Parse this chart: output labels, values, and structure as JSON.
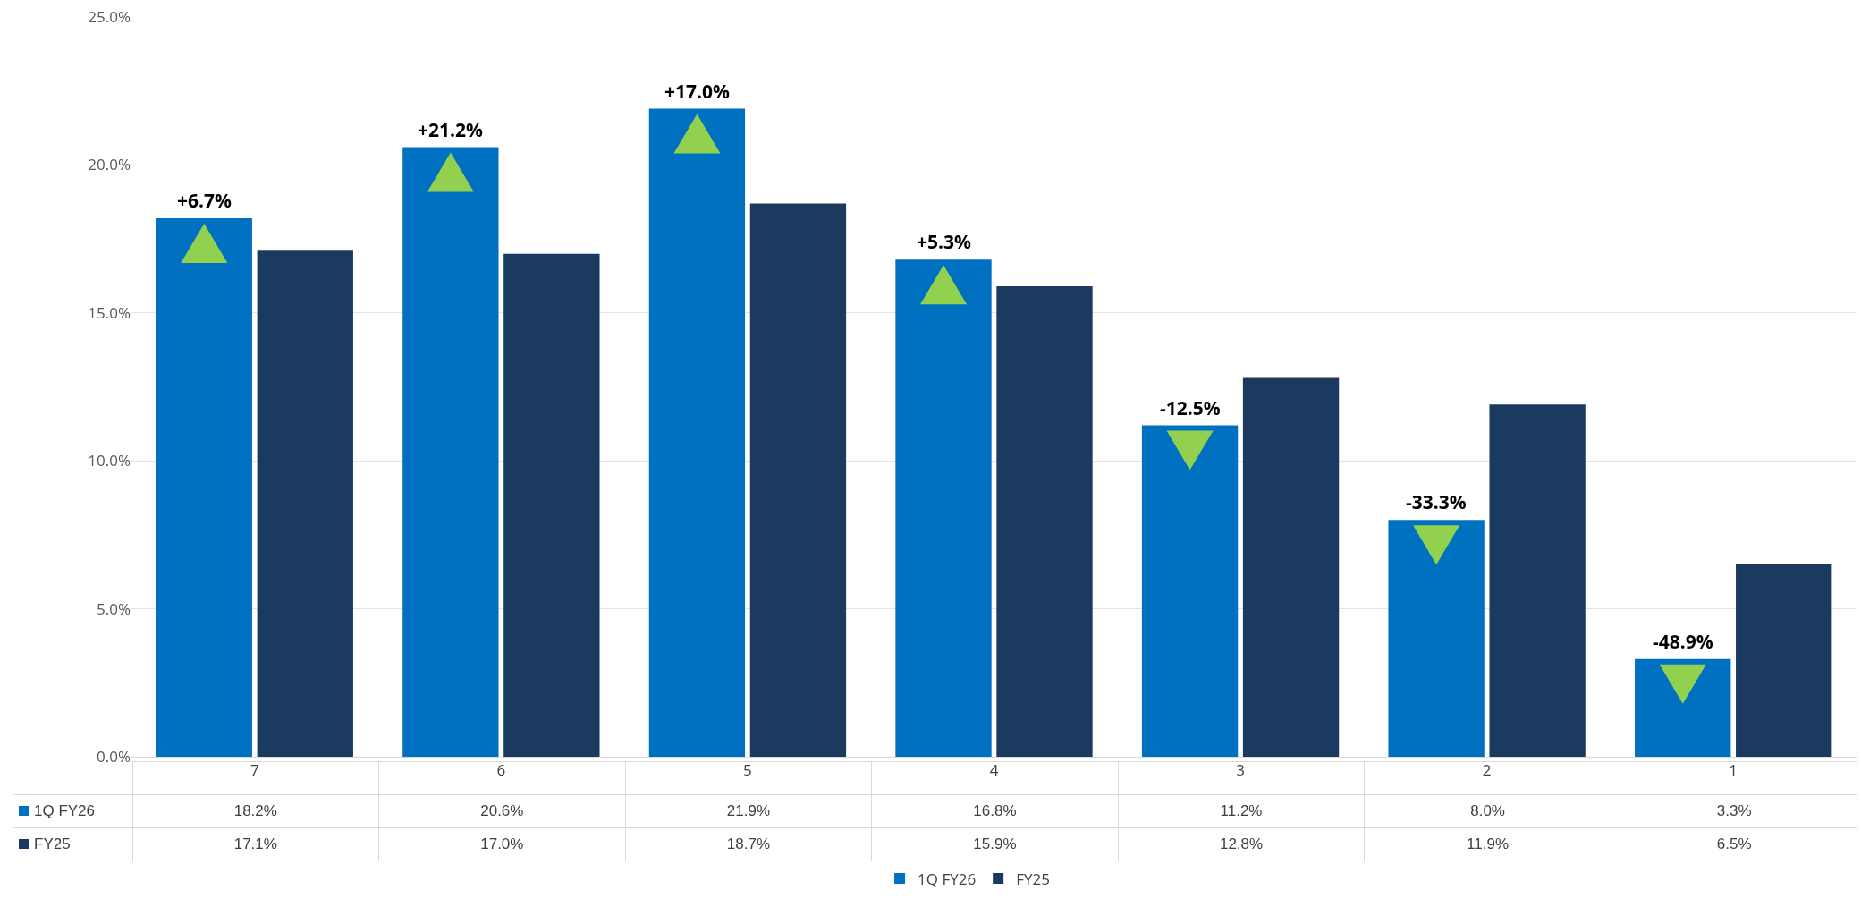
{
  "chart_data": {
    "type": "bar",
    "categories": [
      "7",
      "6",
      "5",
      "4",
      "3",
      "2",
      "1"
    ],
    "series": [
      {
        "name": "1Q FY26",
        "color": "#0070c0",
        "values": [
          18.2,
          20.6,
          21.9,
          16.8,
          11.2,
          8.0,
          3.3
        ],
        "value_labels": [
          "18.2%",
          "20.6%",
          "21.9%",
          "16.8%",
          "11.2%",
          "8.0%",
          "3.3%"
        ]
      },
      {
        "name": "FY25",
        "color": "#1a3b5f",
        "values": [
          17.1,
          17.0,
          18.7,
          15.9,
          12.8,
          11.9,
          6.5
        ],
        "value_labels": [
          "17.1%",
          "17.0%",
          "18.7%",
          "15.9%",
          "12.8%",
          "11.9%",
          "6.5%"
        ]
      }
    ],
    "ylim": [
      0,
      25
    ],
    "yticks": [
      {
        "value": 0,
        "label": "0.0%"
      },
      {
        "value": 5,
        "label": "5.0%"
      },
      {
        "value": 10,
        "label": "10.0%"
      },
      {
        "value": 15,
        "label": "15.0%"
      },
      {
        "value": 20,
        "label": "20.0%"
      },
      {
        "value": 25,
        "label": "25.0%"
      }
    ],
    "annotations": [
      {
        "text": "+6.7%",
        "x": "7",
        "y": 18.2
      },
      {
        "text": "+21.2%",
        "x": "6",
        "y": 20.6
      },
      {
        "text": "+17.0%",
        "x": "5",
        "y": 21.9
      },
      {
        "text": "+5.3%",
        "x": "4",
        "y": 16.8
      },
      {
        "text": "-12.5%",
        "x": "3",
        "y": 11.2
      },
      {
        "text": "-33.3%",
        "x": "2",
        "y": 8.0
      },
      {
        "text": "-48.9%",
        "x": "1",
        "y": 3.3
      }
    ],
    "grid": "y",
    "legend": "bottom"
  }
}
